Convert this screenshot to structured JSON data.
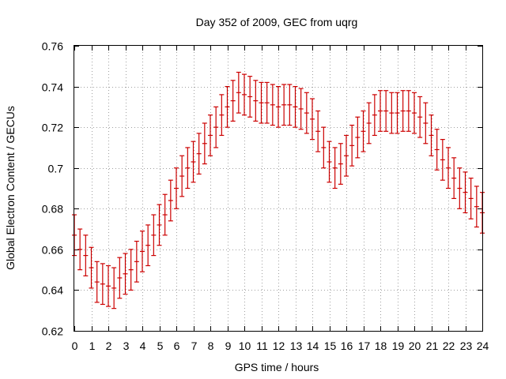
{
  "chart_data": {
    "type": "errorbar",
    "title": "Day 352 of 2009, GEC from uqrg",
    "xlabel": "GPS time / hours",
    "ylabel": "Global Electron Content / GECUs",
    "xlim": [
      0,
      24
    ],
    "ylim": [
      0.62,
      0.76
    ],
    "grid": true,
    "series_color": "#cc0000",
    "x_ticks": [
      "0",
      "1",
      "2",
      "3",
      "4",
      "5",
      "6",
      "7",
      "8",
      "9",
      "10",
      "11",
      "12",
      "13",
      "14",
      "15",
      "16",
      "17",
      "18",
      "19",
      "20",
      "21",
      "22",
      "23",
      "24"
    ],
    "y_ticks": [
      "0.62",
      "0.64",
      "0.66",
      "0.68",
      "0.7",
      "0.72",
      "0.74",
      "0.76"
    ],
    "series": [
      {
        "name": "GEC",
        "x": [
          0,
          0.333,
          0.667,
          1,
          1.333,
          1.667,
          2,
          2.333,
          2.667,
          3,
          3.333,
          3.667,
          4,
          4.333,
          4.667,
          5,
          5.333,
          5.667,
          6,
          6.333,
          6.667,
          7,
          7.333,
          7.667,
          8,
          8.333,
          8.667,
          9,
          9.333,
          9.667,
          10,
          10.333,
          10.667,
          11,
          11.333,
          11.667,
          12,
          12.333,
          12.667,
          13,
          13.333,
          13.667,
          14,
          14.333,
          14.667,
          15,
          15.333,
          15.667,
          16,
          16.333,
          16.667,
          17,
          17.333,
          17.667,
          18,
          18.333,
          18.667,
          19,
          19.333,
          19.667,
          20,
          20.333,
          20.667,
          21,
          21.333,
          21.667,
          22,
          22.333,
          22.667,
          23,
          23.333,
          23.667,
          24
        ],
        "y": [
          0.667,
          0.66,
          0.657,
          0.651,
          0.644,
          0.643,
          0.642,
          0.641,
          0.646,
          0.648,
          0.65,
          0.654,
          0.659,
          0.662,
          0.667,
          0.672,
          0.677,
          0.684,
          0.69,
          0.696,
          0.7,
          0.703,
          0.707,
          0.712,
          0.716,
          0.72,
          0.726,
          0.73,
          0.733,
          0.737,
          0.736,
          0.735,
          0.733,
          0.732,
          0.732,
          0.731,
          0.73,
          0.731,
          0.731,
          0.73,
          0.729,
          0.727,
          0.724,
          0.718,
          0.71,
          0.703,
          0.7,
          0.702,
          0.706,
          0.711,
          0.715,
          0.718,
          0.722,
          0.726,
          0.728,
          0.728,
          0.727,
          0.727,
          0.728,
          0.728,
          0.727,
          0.725,
          0.722,
          0.716,
          0.709,
          0.704,
          0.7,
          0.695,
          0.69,
          0.688,
          0.685,
          0.681,
          0.678
        ],
        "err": [
          0.01,
          0.01,
          0.01,
          0.01,
          0.01,
          0.01,
          0.01,
          0.01,
          0.01,
          0.01,
          0.01,
          0.01,
          0.01,
          0.01,
          0.01,
          0.01,
          0.01,
          0.01,
          0.01,
          0.01,
          0.01,
          0.01,
          0.01,
          0.01,
          0.01,
          0.01,
          0.01,
          0.01,
          0.01,
          0.01,
          0.01,
          0.01,
          0.01,
          0.01,
          0.01,
          0.01,
          0.01,
          0.01,
          0.01,
          0.01,
          0.01,
          0.01,
          0.01,
          0.01,
          0.01,
          0.01,
          0.01,
          0.01,
          0.01,
          0.01,
          0.01,
          0.01,
          0.01,
          0.01,
          0.01,
          0.01,
          0.01,
          0.01,
          0.01,
          0.01,
          0.01,
          0.01,
          0.01,
          0.01,
          0.01,
          0.01,
          0.01,
          0.01,
          0.01,
          0.01,
          0.01,
          0.01,
          0.01
        ]
      }
    ]
  }
}
